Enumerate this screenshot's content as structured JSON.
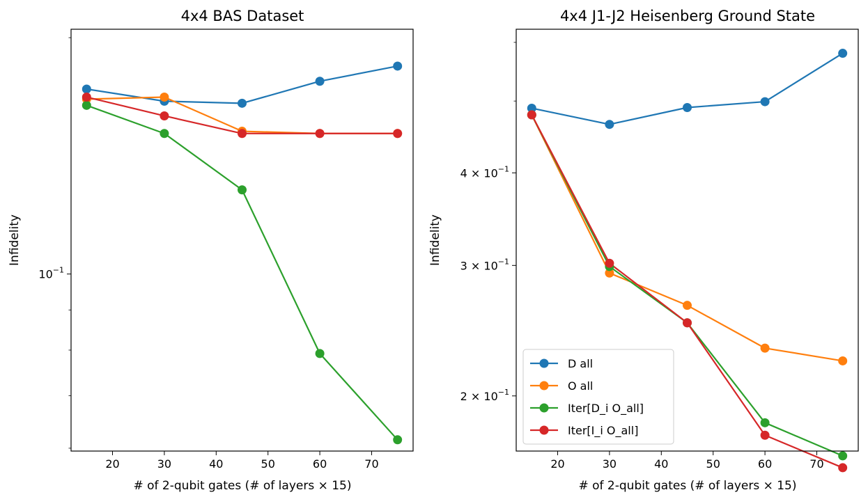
{
  "chart_data": [
    {
      "type": "line",
      "title": "4x4 BAS Dataset",
      "xlabel": "# of 2-qubit gates (# of layers × 15)",
      "ylabel": "Infidelity",
      "yscale": "log",
      "xlim": [
        12,
        78
      ],
      "ylim": [
        0.0595,
        0.205
      ],
      "xticks": [
        20,
        30,
        40,
        50,
        60,
        70
      ],
      "xtick_labels": [
        "20",
        "30",
        "40",
        "50",
        "60",
        "70"
      ],
      "yticks_major": [
        {
          "value": 0.1,
          "base": "10",
          "exp": "−1"
        }
      ],
      "yticks_minor": [
        0.06,
        0.07,
        0.08,
        0.09,
        0.2
      ],
      "x": [
        15,
        30,
        45,
        60,
        75
      ],
      "series": [
        {
          "name": "D all",
          "color": "#1f77b4",
          "values": [
            0.172,
            0.166,
            0.165,
            0.176,
            0.184
          ]
        },
        {
          "name": "O all",
          "color": "#ff7f0e",
          "values": [
            0.167,
            0.168,
            0.152,
            0.151,
            0.151
          ]
        },
        {
          "name": "Iter[D_i O_all]",
          "color": "#2ca02c",
          "values": [
            0.164,
            0.151,
            0.128,
            0.0792,
            0.0615
          ]
        },
        {
          "name": "Iter[I_i O_all]",
          "color": "#d62728",
          "values": [
            0.168,
            0.159,
            0.151,
            0.151,
            0.151
          ]
        }
      ],
      "legend": null
    },
    {
      "type": "line",
      "title": "4x4 J1-J2 Heisenberg Ground State",
      "xlabel": "# of 2-qubit gates (# of layers × 15)",
      "ylabel": "Infidelity",
      "yscale": "log",
      "xlim": [
        12,
        78
      ],
      "ylim": [
        0.1685,
        0.625
      ],
      "xticks": [
        20,
        30,
        40,
        50,
        60,
        70
      ],
      "xtick_labels": [
        "20",
        "30",
        "40",
        "50",
        "60",
        "70"
      ],
      "yticks_major": [
        {
          "value": 0.4,
          "base": "4 × 10",
          "exp": "−1"
        },
        {
          "value": 0.3,
          "base": "3 × 10",
          "exp": "−1"
        },
        {
          "value": 0.2,
          "base": "2 × 10",
          "exp": "−1"
        }
      ],
      "yticks_minor": [
        0.5,
        0.6
      ],
      "x": [
        15,
        30,
        45,
        60,
        75
      ],
      "series": [
        {
          "name": "D all",
          "color": "#1f77b4",
          "values": [
            0.489,
            0.465,
            0.49,
            0.499,
            0.58
          ]
        },
        {
          "name": "O all",
          "color": "#ff7f0e",
          "values": [
            0.479,
            0.293,
            0.265,
            0.232,
            0.223
          ]
        },
        {
          "name": "Iter[D_i O_all]",
          "color": "#2ca02c",
          "values": [
            0.479,
            0.299,
            0.251,
            0.184,
            0.166
          ]
        },
        {
          "name": "Iter[I_i O_all]",
          "color": "#d62728",
          "values": [
            0.479,
            0.302,
            0.251,
            0.177,
            0.16
          ]
        }
      ],
      "legend": "lower-left"
    }
  ]
}
